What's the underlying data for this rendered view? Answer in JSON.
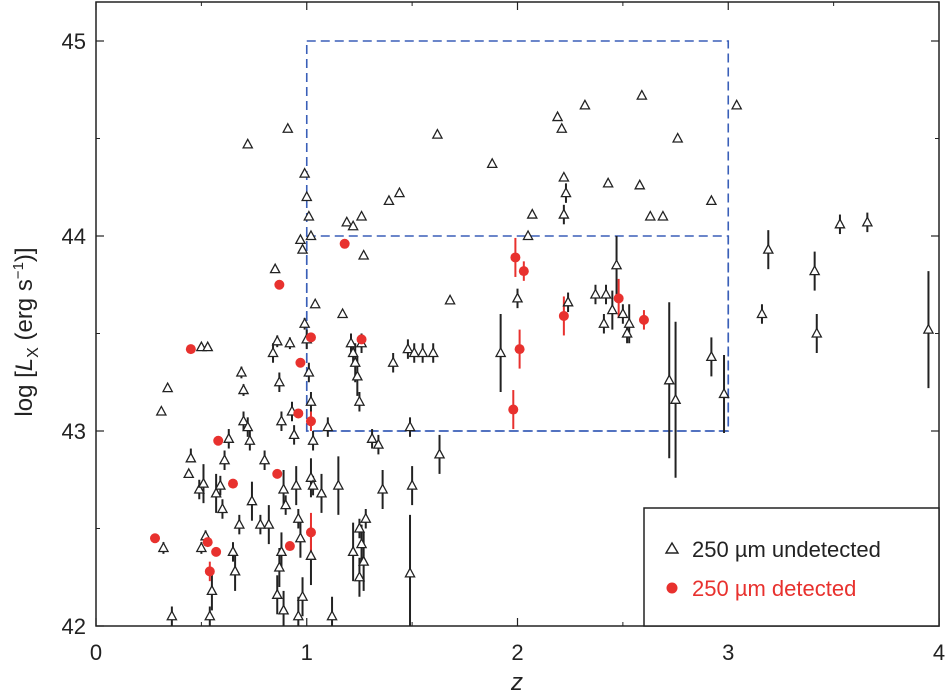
{
  "chart_data": {
    "type": "scatter",
    "xlabel": "z",
    "ylabel_parts": [
      "log [",
      "L",
      "X",
      " (erg s",
      "−1",
      ")]"
    ],
    "xlim": [
      0,
      4
    ],
    "ylim": [
      42,
      45.2
    ],
    "xticks": [
      "0",
      "1",
      "2",
      "3",
      "4"
    ],
    "yticks": [
      "42",
      "43",
      "44",
      "45"
    ],
    "colors": {
      "undetected": "#222222",
      "detected": "#e8312e",
      "box": "#3a5fb8"
    },
    "boxes": [
      {
        "x0": 1.0,
        "x1": 3.0,
        "y0": 43.0,
        "y1": 45.0
      },
      {
        "x0": 1.0,
        "x1": 3.0,
        "y0": 43.0,
        "y1": 44.0
      }
    ],
    "legend": {
      "position": "bottom-right",
      "entries": [
        {
          "label": "250 µm undetected",
          "series": "undetected"
        },
        {
          "label": "250 µm detected",
          "series": "detected"
        }
      ]
    },
    "series": [
      {
        "name": "250 µm undetected",
        "marker": "triangle",
        "points": [
          [
            0.31,
            43.1,
            0,
            0
          ],
          [
            0.34,
            43.22,
            0,
            0
          ],
          [
            0.32,
            42.4,
            0.03,
            0.03
          ],
          [
            0.36,
            42.05,
            0.05,
            0.05
          ],
          [
            0.45,
            42.86,
            0.02,
            0.05
          ],
          [
            0.44,
            42.78,
            0.02,
            0.02
          ],
          [
            0.49,
            42.7,
            0.05,
            0.05
          ],
          [
            0.51,
            42.73,
            0.1,
            0.1
          ],
          [
            0.52,
            42.46,
            0.03,
            0.03
          ],
          [
            0.5,
            42.4,
            0.03,
            0.03
          ],
          [
            0.55,
            42.18,
            0.1,
            0.1
          ],
          [
            0.54,
            42.05,
            0.05,
            0.05
          ],
          [
            0.57,
            42.68,
            0.1,
            0.1
          ],
          [
            0.59,
            42.72,
            0.05,
            0.05
          ],
          [
            0.61,
            42.85,
            0.05,
            0.05
          ],
          [
            0.6,
            42.6,
            0.05,
            0.05
          ],
          [
            0.5,
            43.43,
            0,
            0
          ],
          [
            0.53,
            43.43,
            0,
            0
          ],
          [
            0.63,
            42.96,
            0.05,
            0.05
          ],
          [
            0.65,
            42.38,
            0.05,
            0.05
          ],
          [
            0.66,
            42.28,
            0.1,
            0.1
          ],
          [
            0.68,
            42.52,
            0.05,
            0.05
          ],
          [
            0.69,
            43.3,
            0.03,
            0.03
          ],
          [
            0.7,
            43.21,
            0.03,
            0.03
          ],
          [
            0.7,
            43.05,
            0.05,
            0.05
          ],
          [
            0.72,
            43.02,
            0.05,
            0.05
          ],
          [
            0.73,
            42.95,
            0.05,
            0.05
          ],
          [
            0.74,
            42.64,
            0.1,
            0.1
          ],
          [
            0.72,
            44.47,
            0,
            0
          ],
          [
            0.78,
            42.52,
            0.05,
            0.05
          ],
          [
            0.8,
            42.85,
            0.05,
            0.05
          ],
          [
            0.82,
            42.52,
            0.1,
            0.1
          ],
          [
            0.84,
            43.4,
            0.05,
            0.05
          ],
          [
            0.85,
            43.83,
            0,
            0
          ],
          [
            0.86,
            43.46,
            0.03,
            0.03
          ],
          [
            0.87,
            43.25,
            0.05,
            0.05
          ],
          [
            0.88,
            43.05,
            0.05,
            0.05
          ],
          [
            0.89,
            42.7,
            0.1,
            0.1
          ],
          [
            0.9,
            42.62,
            0.05,
            0.05
          ],
          [
            0.88,
            42.38,
            0.1,
            0.1
          ],
          [
            0.87,
            42.3,
            0.1,
            0.1
          ],
          [
            0.86,
            42.16,
            0.1,
            0.1
          ],
          [
            0.89,
            42.08,
            0.1,
            0.1
          ],
          [
            0.91,
            44.55,
            0,
            0
          ],
          [
            0.92,
            43.45,
            0.03,
            0.03
          ],
          [
            0.93,
            43.1,
            0.05,
            0.05
          ],
          [
            0.94,
            42.98,
            0.05,
            0.05
          ],
          [
            0.95,
            42.72,
            0.1,
            0.1
          ],
          [
            0.96,
            42.55,
            0.05,
            0.05
          ],
          [
            0.97,
            42.45,
            0.1,
            0.1
          ],
          [
            0.98,
            42.15,
            0.1,
            0.1
          ],
          [
            0.96,
            42.05,
            0.1,
            0.1
          ],
          [
            0.97,
            43.98,
            0,
            0
          ],
          [
            0.98,
            43.93,
            0,
            0
          ],
          [
            0.99,
            44.32,
            0,
            0
          ],
          [
            1.0,
            44.2,
            0,
            0
          ],
          [
            1.01,
            44.1,
            0,
            0
          ],
          [
            0.99,
            43.55,
            0.03,
            0.03
          ],
          [
            1.0,
            43.47,
            0.05,
            0.05
          ],
          [
            1.01,
            43.3,
            0.05,
            0.05
          ],
          [
            1.02,
            43.15,
            0.05,
            0.05
          ],
          [
            1.03,
            42.95,
            0.05,
            0.05
          ],
          [
            1.02,
            42.76,
            0.1,
            0.1
          ],
          [
            1.03,
            42.72,
            0.05,
            0.05
          ],
          [
            1.02,
            42.36,
            0.15,
            0.15
          ],
          [
            1.04,
            43.65,
            0,
            0
          ],
          [
            1.02,
            44.0,
            0,
            0
          ],
          [
            1.07,
            42.68,
            0.1,
            0.1
          ],
          [
            1.1,
            43.02,
            0.05,
            0.05
          ],
          [
            1.12,
            42.05,
            0.1,
            0.1
          ],
          [
            1.15,
            42.72,
            0.15,
            0.15
          ],
          [
            1.17,
            43.6,
            0,
            0
          ],
          [
            1.19,
            44.07,
            0,
            0
          ],
          [
            1.21,
            43.45,
            0.05,
            0.05
          ],
          [
            1.22,
            43.4,
            0.05,
            0.05
          ],
          [
            1.23,
            43.35,
            0.1,
            0.1
          ],
          [
            1.24,
            43.28,
            0.1,
            0.1
          ],
          [
            1.25,
            43.15,
            0.05,
            0.05
          ],
          [
            1.26,
            43.45,
            0.05,
            0.05
          ],
          [
            1.22,
            44.05,
            0,
            0
          ],
          [
            1.26,
            44.1,
            0,
            0
          ],
          [
            1.27,
            43.9,
            0,
            0
          ],
          [
            1.25,
            42.5,
            0.05,
            0.05
          ],
          [
            1.26,
            42.42,
            0.1,
            0.1
          ],
          [
            1.22,
            42.38,
            0.15,
            0.15
          ],
          [
            1.27,
            42.33,
            0.15,
            0.15
          ],
          [
            1.25,
            42.25,
            0.1,
            0.1
          ],
          [
            1.28,
            42.55,
            0.05,
            0.05
          ],
          [
            1.31,
            42.96,
            0.05,
            0.05
          ],
          [
            1.34,
            42.93,
            0.05,
            0.05
          ],
          [
            1.36,
            42.7,
            0.1,
            0.1
          ],
          [
            1.39,
            44.18,
            0,
            0
          ],
          [
            1.41,
            43.35,
            0.05,
            0.05
          ],
          [
            1.44,
            44.22,
            0,
            0
          ],
          [
            1.48,
            43.42,
            0.05,
            0.05
          ],
          [
            1.51,
            43.4,
            0.05,
            0.05
          ],
          [
            1.49,
            43.02,
            0.05,
            0.05
          ],
          [
            1.5,
            42.72,
            0.1,
            0.1
          ],
          [
            1.49,
            42.27,
            0.3,
            0.3
          ],
          [
            1.55,
            43.4,
            0.05,
            0.05
          ],
          [
            1.6,
            43.4,
            0.05,
            0.05
          ],
          [
            1.62,
            44.52,
            0,
            0
          ],
          [
            1.63,
            42.88,
            0.1,
            0.1
          ],
          [
            1.68,
            43.67,
            0,
            0
          ],
          [
            1.88,
            44.37,
            0,
            0
          ],
          [
            1.92,
            43.4,
            0.2,
            0.2
          ],
          [
            2.0,
            43.68,
            0.05,
            0.05
          ],
          [
            2.05,
            44.0,
            0,
            0
          ],
          [
            2.07,
            44.11,
            0,
            0
          ],
          [
            2.19,
            44.61,
            0,
            0
          ],
          [
            2.21,
            44.55,
            0,
            0
          ],
          [
            2.22,
            44.3,
            0,
            0
          ],
          [
            2.23,
            44.22,
            0.05,
            0.05
          ],
          [
            2.22,
            44.11,
            0.05,
            0.05
          ],
          [
            2.24,
            43.66,
            0.05,
            0.05
          ],
          [
            2.32,
            44.67,
            0,
            0
          ],
          [
            2.37,
            43.7,
            0.05,
            0.05
          ],
          [
            2.41,
            43.55,
            0.05,
            0.05
          ],
          [
            2.42,
            43.7,
            0.05,
            0.05
          ],
          [
            2.43,
            44.27,
            0,
            0
          ],
          [
            2.45,
            43.62,
            0.1,
            0.1
          ],
          [
            2.47,
            43.85,
            0.15,
            0.15
          ],
          [
            2.5,
            43.6,
            0.05,
            0.05
          ],
          [
            2.52,
            43.5,
            0.05,
            0.05
          ],
          [
            2.53,
            43.55,
            0.1,
            0.1
          ],
          [
            2.58,
            44.26,
            0,
            0
          ],
          [
            2.59,
            44.72,
            0,
            0
          ],
          [
            2.63,
            44.1,
            0,
            0
          ],
          [
            2.69,
            44.1,
            0,
            0
          ],
          [
            2.72,
            43.26,
            0.4,
            0.4
          ],
          [
            2.75,
            43.16,
            0.4,
            0.4
          ],
          [
            2.76,
            44.5,
            0,
            0
          ],
          [
            2.92,
            44.18,
            0,
            0
          ],
          [
            2.92,
            43.38,
            0.1,
            0.1
          ],
          [
            2.98,
            43.19,
            0.2,
            0.2
          ],
          [
            3.04,
            44.67,
            0,
            0
          ],
          [
            3.16,
            43.6,
            0.05,
            0.05
          ],
          [
            3.19,
            43.93,
            0.1,
            0.1
          ],
          [
            3.41,
            43.82,
            0.1,
            0.1
          ],
          [
            3.42,
            43.5,
            0.1,
            0.1
          ],
          [
            3.53,
            44.06,
            0.05,
            0.05
          ],
          [
            3.66,
            44.07,
            0.05,
            0.05
          ],
          [
            3.95,
            43.52,
            0.3,
            0.3
          ]
        ]
      },
      {
        "name": "250 µm detected",
        "marker": "circle",
        "points": [
          [
            0.28,
            42.45,
            0,
            0
          ],
          [
            0.45,
            43.42,
            0,
            0
          ],
          [
            0.53,
            42.43,
            0,
            0
          ],
          [
            0.54,
            42.28,
            0.05,
            0.05
          ],
          [
            0.57,
            42.38,
            0,
            0
          ],
          [
            0.58,
            42.95,
            0,
            0
          ],
          [
            0.65,
            42.73,
            0,
            0
          ],
          [
            0.87,
            43.75,
            0,
            0
          ],
          [
            0.86,
            42.78,
            0,
            0
          ],
          [
            0.92,
            42.41,
            0,
            0
          ],
          [
            0.96,
            43.09,
            0,
            0
          ],
          [
            0.97,
            43.35,
            0,
            0
          ],
          [
            1.02,
            43.05,
            0.05,
            0.05
          ],
          [
            1.02,
            43.48,
            0,
            0
          ],
          [
            1.02,
            42.48,
            0.1,
            0.1
          ],
          [
            1.18,
            43.96,
            0,
            0
          ],
          [
            1.26,
            43.47,
            0,
            0
          ],
          [
            1.98,
            43.11,
            0.1,
            0.1
          ],
          [
            1.99,
            43.89,
            0.1,
            0.1
          ],
          [
            2.01,
            43.42,
            0.1,
            0.1
          ],
          [
            2.03,
            43.82,
            0.05,
            0.05
          ],
          [
            2.22,
            43.59,
            0.1,
            0.1
          ],
          [
            2.48,
            43.68,
            0.1,
            0.1
          ],
          [
            2.6,
            43.57,
            0.05,
            0.05
          ]
        ]
      }
    ]
  }
}
